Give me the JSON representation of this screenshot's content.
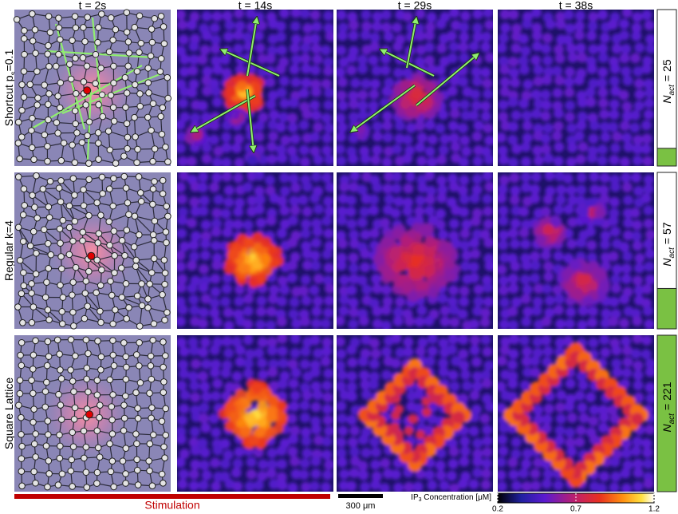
{
  "column_titles": [
    "t = 2s",
    "t = 14s",
    "t = 29s",
    "t = 38s"
  ],
  "rows": [
    {
      "label": "Shortcut p",
      "label_sub": "s",
      "label_rest": "=0.1"
    },
    {
      "label": "Regular k=4"
    },
    {
      "label": "Square Lattice"
    }
  ],
  "n_active": {
    "symbol": "N",
    "subscript": "act",
    "relation": "=",
    "values": [
      25,
      57,
      221
    ],
    "color": "#7ac143"
  },
  "stimulation": "Stimulation",
  "scale_bar": "300 μm",
  "colorbar": {
    "title": "IP",
    "title_sub": "3",
    "title_rest": " Concentration [μM]",
    "lim": [
      0.2,
      1.2
    ],
    "ticks": [
      0.2,
      0.7,
      1.2
    ]
  }
}
